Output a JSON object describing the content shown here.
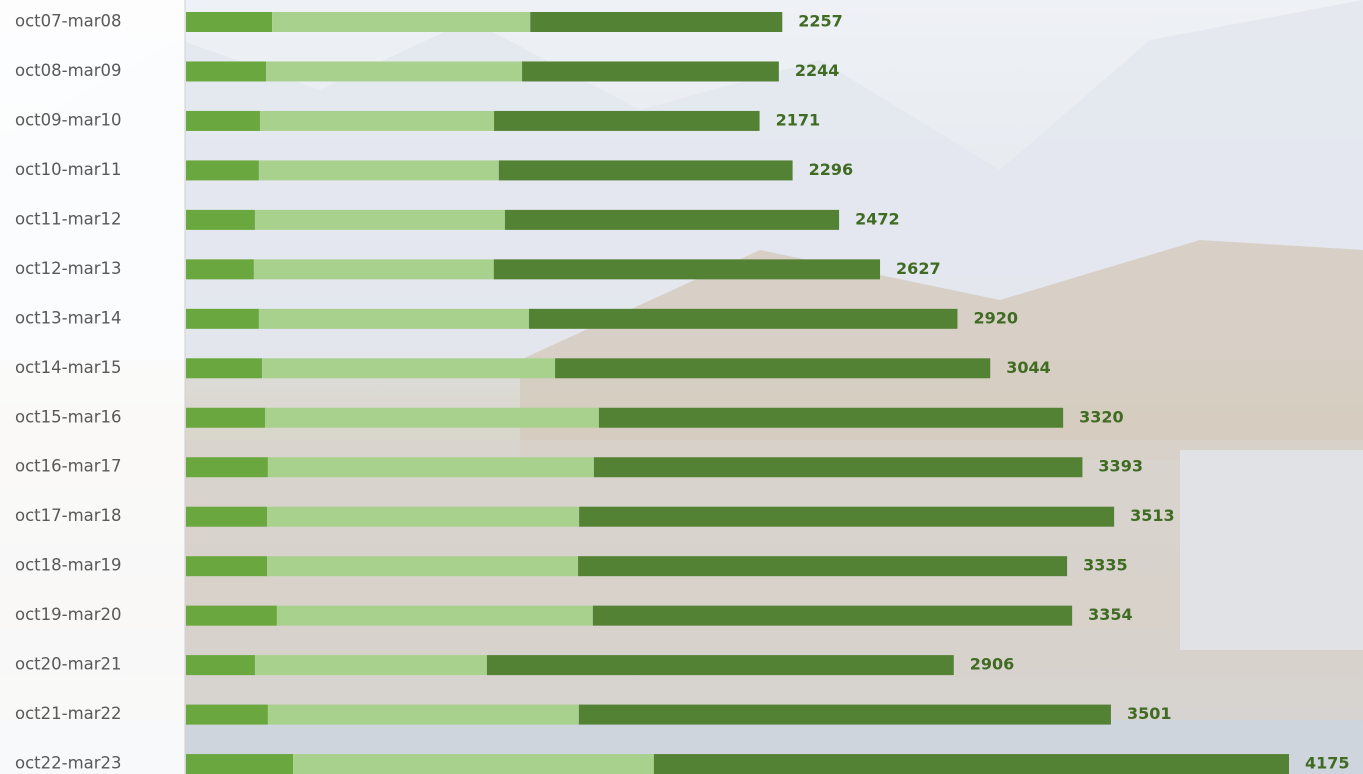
{
  "chart_data": {
    "type": "stacked-bar",
    "orientation": "horizontal",
    "categories": [
      "oct07-mar08",
      "oct08-mar09",
      "oct09-mar10",
      "oct10-mar11",
      "oct11-mar12",
      "oct12-mar13",
      "oct13-mar14",
      "oct14-mar15",
      "oct15-mar16",
      "oct16-mar17",
      "oct17-mar18",
      "oct18-mar19",
      "oct19-mar20",
      "oct20-mar21",
      "oct21-mar22",
      "oct22-mar23"
    ],
    "series": [
      {
        "color": "#6aa83f",
        "values": [
          326,
          303,
          280,
          276,
          261,
          257,
          276,
          288,
          299,
          310,
          307,
          307,
          344,
          261,
          310,
          405
        ]
      },
      {
        "color": "#a9d18e",
        "values": [
          977,
          969,
          886,
          908,
          946,
          908,
          1022,
          1109,
          1264,
          1234,
          1181,
          1177,
          1196,
          878,
          1177,
          1366
        ]
      },
      {
        "color": "#548235",
        "values": [
          954,
          972,
          1005,
          1112,
          1265,
          1462,
          1622,
          1647,
          1757,
          1849,
          2025,
          1851,
          1814,
          1767,
          2014,
          2404
        ]
      }
    ],
    "totals": [
      2257,
      2244,
      2171,
      2296,
      2472,
      2627,
      2920,
      3044,
      3320,
      3393,
      3513,
      3335,
      3354,
      2906,
      3501,
      4175
    ],
    "xlim": [
      0,
      4455
    ]
  }
}
